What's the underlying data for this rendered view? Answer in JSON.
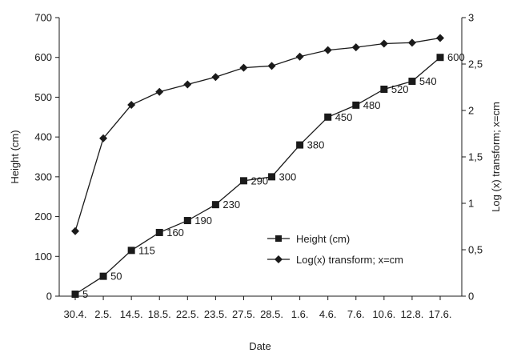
{
  "chart_data": {
    "type": "line",
    "categories": [
      "30.4.",
      "2.5.",
      "14.5.",
      "18.5.",
      "22.5.",
      "23.5.",
      "27.5.",
      "28.5.",
      "1.6.",
      "4.6.",
      "7.6.",
      "10.6.",
      "12.8.",
      "17.6."
    ],
    "xlabel": "Date",
    "ylabel": "Height (cm)",
    "y2label": "Log (x) transform; x=cm",
    "ylim": [
      0,
      700
    ],
    "y2lim": [
      0,
      3
    ],
    "yticks": [
      "0",
      "100",
      "200",
      "300",
      "400",
      "500",
      "600",
      "700"
    ],
    "y2ticks": [
      "0",
      "0,5",
      "1",
      "1,5",
      "2",
      "2,5",
      "3"
    ],
    "grid": false,
    "legend_position": "bottom-right",
    "series": [
      {
        "name": "Height (cm)",
        "axis": "left",
        "marker": "square",
        "values": [
          5,
          50,
          115,
          160,
          190,
          230,
          290,
          300,
          380,
          450,
          480,
          520,
          540,
          600
        ],
        "labels": [
          "5",
          "50",
          "115",
          "160",
          "190",
          "230",
          "290",
          "300",
          "380",
          "450",
          "480",
          "520",
          "540",
          "600"
        ]
      },
      {
        "name": "Log(x) transform; x=cm",
        "axis": "right",
        "marker": "diamond",
        "values": [
          0.7,
          1.7,
          2.06,
          2.2,
          2.28,
          2.36,
          2.46,
          2.48,
          2.58,
          2.65,
          2.68,
          2.72,
          2.73,
          2.78
        ]
      }
    ],
    "colors": {
      "line": "#1a1a1a",
      "marker": "#1a1a1a"
    }
  }
}
